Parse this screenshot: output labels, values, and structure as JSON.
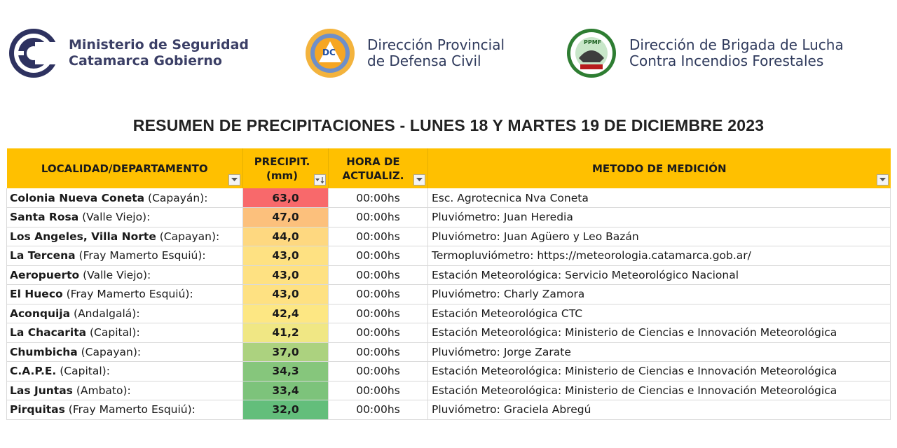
{
  "logos": {
    "ministerio": {
      "line1": "Ministerio de Seguridad",
      "line2": "Catamarca Gobierno"
    },
    "defensa": {
      "badge": "DC",
      "line1": "Dirección Provincial",
      "line2": "de Defensa Civil"
    },
    "brigada": {
      "badge": "PPMF",
      "line1": "Dirección de Brigada de Lucha",
      "line2": "Contra Incendios Forestales"
    }
  },
  "title": "RESUMEN DE PRECIPITACIONES - LUNES 18 Y MARTES 19 DE DICIEMBRE 2023",
  "columns": {
    "localidad": "LOCALIDAD/DEPARTAMENTO",
    "precip_1": "PRECIPIT.",
    "precip_2": "(mm)",
    "hora_1": "HORA DE",
    "hora_2": "ACTUALIZ.",
    "metodo": "METODO DE MEDICIÓN"
  },
  "icons": {
    "filter": "dropdown-filter-icon",
    "sort": "sort-descending-filter-icon"
  },
  "rows": [
    {
      "name": "Colonia Nueva Coneta",
      "dept": " (Capayán):",
      "value": "63,0",
      "hora": "00:00hs",
      "metodo": "Esc. Agrotecnica Nva Coneta",
      "color": "#f8696b"
    },
    {
      "name": "Santa Rosa",
      "dept": " (Valle Viejo):",
      "value": "47,0",
      "hora": "00:00hs",
      "metodo": "Pluviómetro: Juan Heredia",
      "color": "#fcc07c"
    },
    {
      "name": "Los Angeles, Villa Norte",
      "dept": " (Capayan):",
      "value": "44,0",
      "hora": "00:00hs",
      "metodo": "Pluviómetro: Juan Agüero y Leo Bazán",
      "color": "#fed880"
    },
    {
      "name": "La Tercena",
      "dept": " (Fray Mamerto Esquiú):",
      "value": "43,0",
      "hora": "00:00hs",
      "metodo": "Termopluviómetro: https://meteorologia.catamarca.gob.ar/",
      "color": "#fee182"
    },
    {
      "name": "Aeropuerto",
      "dept": " (Valle Viejo):",
      "value": "43,0",
      "hora": "00:00hs",
      "metodo": "Estación Meteorológica: Servicio Meteorológico Nacional",
      "color": "#fee182"
    },
    {
      "name": "El Hueco",
      "dept": " (Fray Mamerto Esquiú):",
      "value": "43,0",
      "hora": "00:00hs",
      "metodo": "Pluviómetro: Charly Zamora",
      "color": "#fee182"
    },
    {
      "name": "Aconquija",
      "dept": " (Andalgalá):",
      "value": "42,4",
      "hora": "00:00hs",
      "metodo": "Estación Meteorológica CTC",
      "color": "#fde783"
    },
    {
      "name": "La Chacarita",
      "dept": " (Capital):",
      "value": "41,2",
      "hora": "00:00hs",
      "metodo": "Estación Meteorológica: Ministerio de Ciencias e Innovación Meteorológica",
      "color": "#f0e784"
    },
    {
      "name": "Chumbicha",
      "dept": " (Capayan):",
      "value": "37,0",
      "hora": "00:00hs",
      "metodo": "Pluviómetro: Jorge Zarate",
      "color": "#acd27f"
    },
    {
      "name": "C.A.P.E.",
      "dept": " (Capital):",
      "value": "34,3",
      "hora": "00:00hs",
      "metodo": "Estación Meteorológica: Ministerio de Ciencias e Innovación Meteorológica",
      "color": "#86c67c"
    },
    {
      "name": "Las Juntas",
      "dept": " (Ambato):",
      "value": "33,4",
      "hora": "00:00hs",
      "metodo": "Estación Meteorológica: Ministerio de Ciencias e Innovación Meteorológica",
      "color": "#7dc37b"
    },
    {
      "name": "Pirquitas",
      "dept": " (Fray Mamerto Esquiú):",
      "value": "32,0",
      "hora": "00:00hs",
      "metodo": "Pluviómetro: Graciela Abregú",
      "color": "#63be7b"
    }
  ]
}
